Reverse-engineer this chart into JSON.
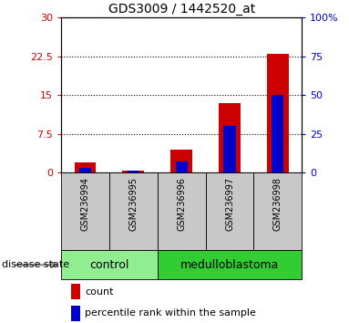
{
  "title": "GDS3009 / 1442520_at",
  "samples": [
    "GSM236994",
    "GSM236995",
    "GSM236996",
    "GSM236997",
    "GSM236998"
  ],
  "count_values": [
    2.0,
    0.5,
    4.5,
    13.5,
    23.0
  ],
  "percentile_values": [
    3.0,
    1.5,
    7.0,
    30.0,
    50.0
  ],
  "left_ylim": [
    0,
    30
  ],
  "right_ylim": [
    0,
    100
  ],
  "left_yticks": [
    0,
    7.5,
    15,
    22.5,
    30
  ],
  "right_yticks": [
    0,
    25,
    50,
    75,
    100
  ],
  "left_yticklabels": [
    "0",
    "7.5",
    "15",
    "22.5",
    "30"
  ],
  "right_yticklabels": [
    "0",
    "25",
    "50",
    "75",
    "100%"
  ],
  "count_color": "#cc0000",
  "percentile_color": "#0000cc",
  "bg_color": "#c8c8c8",
  "control_samples": [
    "GSM236994",
    "GSM236995"
  ],
  "medulloblastoma_samples": [
    "GSM236996",
    "GSM236997",
    "GSM236998"
  ],
  "control_color": "#90ee90",
  "medulloblastoma_color": "#32cd32",
  "disease_state_label": "disease state",
  "control_label": "control",
  "medulloblastoma_label": "medulloblastoma",
  "legend_count": "count",
  "legend_percentile": "percentile rank within the sample",
  "plot_bg": "#ffffff",
  "tick_label_color_left": "#cc0000",
  "tick_label_color_right": "#0000cc",
  "n_ctrl": 2,
  "n_med": 3
}
